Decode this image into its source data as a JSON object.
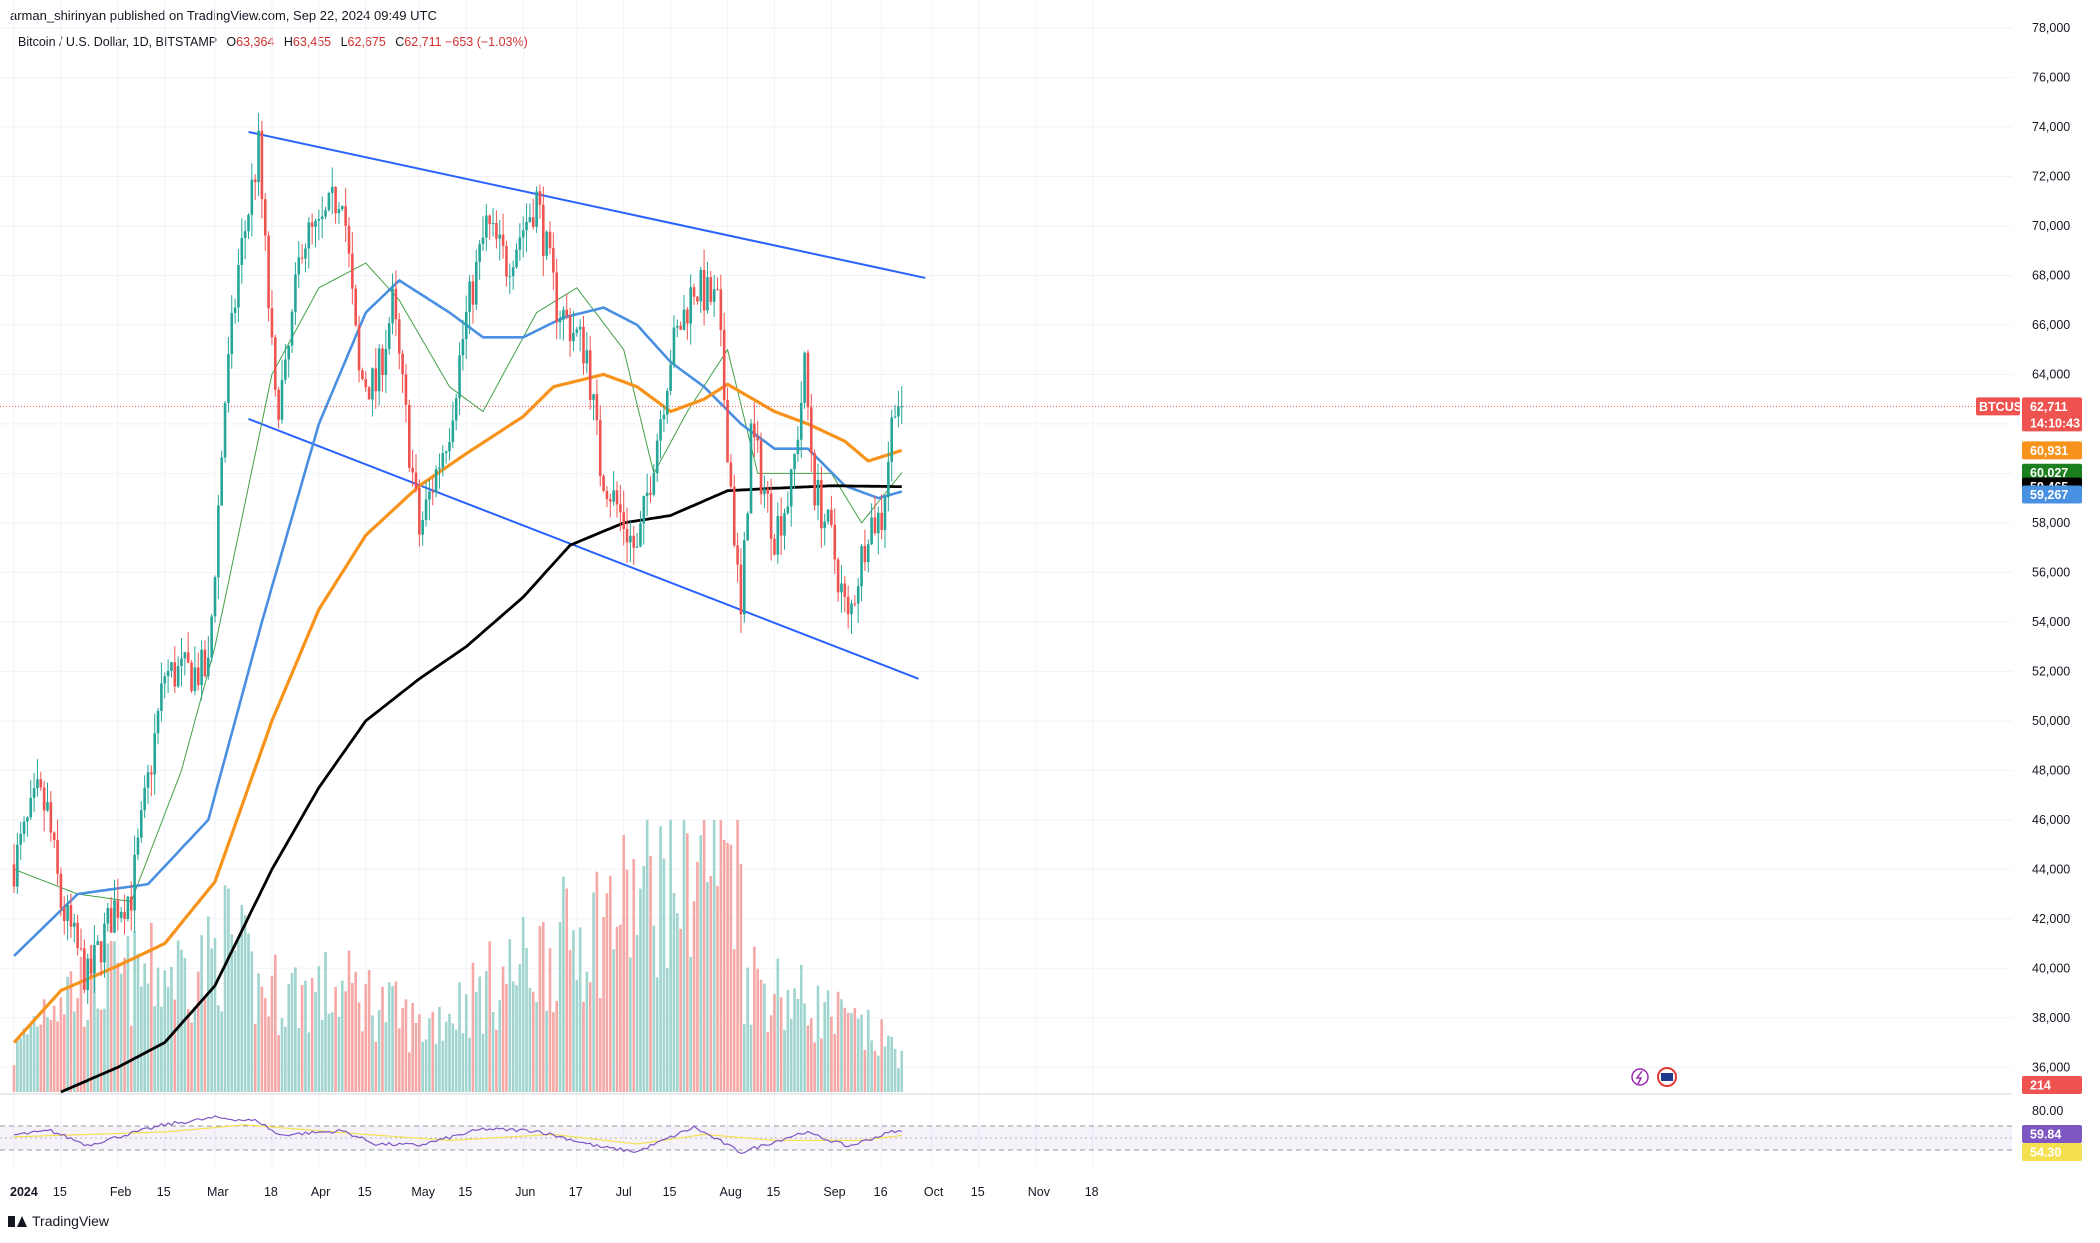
{
  "header": {
    "publisher": "arman_shirinyan published on TradingView.com, Sep 22, 2024 09:49 UTC",
    "symbol_name": "Bitcoin / U.S. Dollar, 1D, BITSTAMP",
    "open_label": "O",
    "open": "63,364",
    "high_label": "H",
    "high": "63,455",
    "low_label": "L",
    "low": "62,675",
    "close_label": "C",
    "close": "62,711",
    "change": "−653 (−1.03%)"
  },
  "footer": {
    "brand": "TradingView"
  },
  "colors": {
    "up": "#26a69a",
    "down": "#ef5350",
    "up_volume": "#9fd4cf",
    "down_volume": "#f5a8a6",
    "ma_short": "#43a047",
    "ma_50": "#4a90e2",
    "ma_100": "#f7931a",
    "ma_200": "#000000",
    "channel": "#2962ff",
    "rsi": "#7e57c2",
    "rsi_ma": "#f5e050"
  },
  "badges": {
    "symbol": "BTCUSD",
    "price": "62,711",
    "countdown": "14:10:43",
    "ma_100": "60,931",
    "ma_short": "60,027",
    "ma_200": "59,465",
    "ma_50": "59,267",
    "volume": "214",
    "rsi": "59.84",
    "rsi_ma": "54.30"
  },
  "chart_data": {
    "type": "candlestick",
    "y_axis": {
      "min": 35000,
      "max": 78000,
      "ticks": [
        "36,000",
        "38,000",
        "40,000",
        "42,000",
        "44,000",
        "46,000",
        "48,000",
        "50,000",
        "52,000",
        "54,000",
        "56,000",
        "58,000",
        "60,000",
        "62,000",
        "64,000",
        "66,000",
        "68,000",
        "70,000",
        "72,000",
        "74,000",
        "76,000",
        "78,000"
      ]
    },
    "rsi_axis": {
      "min": 0,
      "max": 100,
      "bands": [
        70,
        30
      ],
      "ticks": [
        "80.00"
      ]
    },
    "x_axis": {
      "start": "2024-01-01",
      "ticks": [
        {
          "date": "2024-01-01",
          "label": "2024"
        },
        {
          "date": "2024-01-15",
          "label": "15"
        },
        {
          "date": "2024-02-01",
          "label": "Feb"
        },
        {
          "date": "2024-02-15",
          "label": "15"
        },
        {
          "date": "2024-03-01",
          "label": "Mar"
        },
        {
          "date": "2024-03-18",
          "label": "18"
        },
        {
          "date": "2024-04-01",
          "label": "Apr"
        },
        {
          "date": "2024-04-15",
          "label": "15"
        },
        {
          "date": "2024-05-01",
          "label": "May"
        },
        {
          "date": "2024-05-15",
          "label": "15"
        },
        {
          "date": "2024-06-01",
          "label": "Jun"
        },
        {
          "date": "2024-06-17",
          "label": "17"
        },
        {
          "date": "2024-07-01",
          "label": "Jul"
        },
        {
          "date": "2024-07-15",
          "label": "15"
        },
        {
          "date": "2024-08-01",
          "label": "Aug"
        },
        {
          "date": "2024-08-15",
          "label": "15"
        },
        {
          "date": "2024-09-01",
          "label": "Sep"
        },
        {
          "date": "2024-09-16",
          "label": "16"
        },
        {
          "date": "2024-10-01",
          "label": "Oct"
        },
        {
          "date": "2024-10-15",
          "label": "15"
        },
        {
          "date": "2024-11-01",
          "label": "Nov"
        },
        {
          "date": "2024-11-18",
          "label": "18"
        }
      ]
    },
    "close_path": [
      [
        "2024-01-01",
        44200
      ],
      [
        "2024-01-08",
        46900
      ],
      [
        "2024-01-11",
        46300
      ],
      [
        "2024-01-15",
        42600
      ],
      [
        "2024-01-23",
        39500
      ],
      [
        "2024-01-31",
        42500
      ],
      [
        "2024-02-05",
        43000
      ],
      [
        "2024-02-10",
        47500
      ],
      [
        "2024-02-15",
        51900
      ],
      [
        "2024-02-28",
        52000
      ],
      [
        "2024-03-04",
        63000
      ],
      [
        "2024-03-08",
        68300
      ],
      [
        "2024-03-14",
        73100
      ],
      [
        "2024-03-19",
        62700
      ],
      [
        "2024-03-22",
        63800
      ],
      [
        "2024-03-27",
        69500
      ],
      [
        "2024-04-01",
        69700
      ],
      [
        "2024-04-08",
        71600
      ],
      [
        "2024-04-13",
        63900
      ],
      [
        "2024-04-18",
        63500
      ],
      [
        "2024-04-23",
        66800
      ],
      [
        "2024-05-01",
        57600
      ],
      [
        "2024-05-10",
        62000
      ],
      [
        "2024-05-15",
        66300
      ],
      [
        "2024-05-21",
        70000
      ],
      [
        "2024-05-27",
        68500
      ],
      [
        "2024-06-05",
        71100
      ],
      [
        "2024-06-11",
        66800
      ],
      [
        "2024-06-20",
        64900
      ],
      [
        "2024-06-24",
        60300
      ],
      [
        "2024-07-05",
        56700
      ],
      [
        "2024-07-15",
        64800
      ],
      [
        "2024-07-22",
        67600
      ],
      [
        "2024-07-29",
        66800
      ],
      [
        "2024-08-05",
        54000
      ],
      [
        "2024-08-08",
        61700
      ],
      [
        "2024-08-15",
        57600
      ],
      [
        "2024-08-20",
        59400
      ],
      [
        "2024-08-24",
        64200
      ],
      [
        "2024-08-27",
        59400
      ],
      [
        "2024-09-01",
        57300
      ],
      [
        "2024-09-06",
        53900
      ],
      [
        "2024-09-12",
        58000
      ],
      [
        "2024-09-16",
        58200
      ],
      [
        "2024-09-20",
        63200
      ],
      [
        "2024-09-22",
        62711
      ]
    ],
    "volume_scale_max": 30000,
    "volume_path": [
      [
        "2024-01-01",
        4000
      ],
      [
        "2024-01-12",
        11000
      ],
      [
        "2024-02-28",
        14000
      ],
      [
        "2024-03-05",
        17000
      ],
      [
        "2024-03-14",
        11000
      ],
      [
        "2024-04-13",
        11000
      ],
      [
        "2024-05-01",
        7000
      ],
      [
        "2024-08-05",
        28000
      ],
      [
        "2024-08-06",
        13000
      ],
      [
        "2024-09-22",
        4500
      ]
    ],
    "volume_base": 4500,
    "ma_50": [
      [
        "2024-01-01",
        40500
      ],
      [
        "2024-01-20",
        43000
      ],
      [
        "2024-02-10",
        43400
      ],
      [
        "2024-02-28",
        46000
      ],
      [
        "2024-03-15",
        54000
      ],
      [
        "2024-04-01",
        62000
      ],
      [
        "2024-04-15",
        66500
      ],
      [
        "2024-04-25",
        67800
      ],
      [
        "2024-05-10",
        66500
      ],
      [
        "2024-05-20",
        65500
      ],
      [
        "2024-06-01",
        65500
      ],
      [
        "2024-06-13",
        66300
      ],
      [
        "2024-06-25",
        66700
      ],
      [
        "2024-07-05",
        66000
      ],
      [
        "2024-07-15",
        64500
      ],
      [
        "2024-07-25",
        63500
      ],
      [
        "2024-08-05",
        62000
      ],
      [
        "2024-08-15",
        61000
      ],
      [
        "2024-08-25",
        61000
      ],
      [
        "2024-09-05",
        59500
      ],
      [
        "2024-09-15",
        59000
      ],
      [
        "2024-09-22",
        59267
      ]
    ],
    "ma_100": [
      [
        "2024-01-01",
        37000
      ],
      [
        "2024-01-15",
        39100
      ],
      [
        "2024-02-01",
        40100
      ],
      [
        "2024-02-15",
        41000
      ],
      [
        "2024-03-01",
        43500
      ],
      [
        "2024-03-18",
        50000
      ],
      [
        "2024-04-01",
        54500
      ],
      [
        "2024-04-15",
        57500
      ],
      [
        "2024-05-01",
        59500
      ],
      [
        "2024-05-15",
        60800
      ],
      [
        "2024-06-01",
        62300
      ],
      [
        "2024-06-10",
        63500
      ],
      [
        "2024-06-25",
        64000
      ],
      [
        "2024-07-05",
        63500
      ],
      [
        "2024-07-15",
        62500
      ],
      [
        "2024-07-25",
        63000
      ],
      [
        "2024-08-01",
        63600
      ],
      [
        "2024-08-15",
        62500
      ],
      [
        "2024-08-25",
        62000
      ],
      [
        "2024-09-05",
        61300
      ],
      [
        "2024-09-12",
        60500
      ],
      [
        "2024-09-22",
        60931
      ]
    ],
    "ma_200": [
      [
        "2024-01-15",
        35000
      ],
      [
        "2024-02-01",
        36000
      ],
      [
        "2024-02-15",
        37000
      ],
      [
        "2024-03-01",
        39300
      ],
      [
        "2024-03-18",
        44000
      ],
      [
        "2024-04-01",
        47300
      ],
      [
        "2024-04-15",
        50000
      ],
      [
        "2024-05-01",
        51700
      ],
      [
        "2024-05-15",
        53000
      ],
      [
        "2024-06-01",
        55000
      ],
      [
        "2024-06-15",
        57100
      ],
      [
        "2024-07-01",
        58000
      ],
      [
        "2024-07-15",
        58300
      ],
      [
        "2024-08-01",
        59300
      ],
      [
        "2024-08-15",
        59400
      ],
      [
        "2024-09-01",
        59500
      ],
      [
        "2024-09-22",
        59465
      ]
    ],
    "ma_short": [
      [
        "2024-01-01",
        44000
      ],
      [
        "2024-01-20",
        43000
      ],
      [
        "2024-02-05",
        42700
      ],
      [
        "2024-02-20",
        48000
      ],
      [
        "2024-03-01",
        53000
      ],
      [
        "2024-03-18",
        64000
      ],
      [
        "2024-04-01",
        67500
      ],
      [
        "2024-04-15",
        68500
      ],
      [
        "2024-04-25",
        67000
      ],
      [
        "2024-05-10",
        63500
      ],
      [
        "2024-05-20",
        62500
      ],
      [
        "2024-06-05",
        66500
      ],
      [
        "2024-06-17",
        67500
      ],
      [
        "2024-07-01",
        65000
      ],
      [
        "2024-07-10",
        60000
      ],
      [
        "2024-07-20",
        62500
      ],
      [
        "2024-08-01",
        65000
      ],
      [
        "2024-08-10",
        60000
      ],
      [
        "2024-08-20",
        60000
      ],
      [
        "2024-09-01",
        60000
      ],
      [
        "2024-09-10",
        58000
      ],
      [
        "2024-09-22",
        60027
      ]
    ],
    "channel_upper": [
      [
        "2024-03-11",
        73800
      ],
      [
        "2024-09-29",
        67900
      ]
    ],
    "channel_lower": [
      [
        "2024-03-11",
        62200
      ],
      [
        "2024-09-27",
        51700
      ]
    ],
    "rsi_path": [
      [
        "2024-01-01",
        55
      ],
      [
        "2024-01-12",
        62
      ],
      [
        "2024-01-23",
        38
      ],
      [
        "2024-02-01",
        52
      ],
      [
        "2024-02-15",
        72
      ],
      [
        "2024-03-01",
        84
      ],
      [
        "2024-03-14",
        78
      ],
      [
        "2024-03-20",
        55
      ],
      [
        "2024-04-08",
        62
      ],
      [
        "2024-04-18",
        40
      ],
      [
        "2024-05-01",
        38
      ],
      [
        "2024-05-20",
        65
      ],
      [
        "2024-06-05",
        62
      ],
      [
        "2024-06-24",
        35
      ],
      [
        "2024-07-05",
        27
      ],
      [
        "2024-07-22",
        68
      ],
      [
        "2024-08-05",
        26
      ],
      [
        "2024-08-24",
        60
      ],
      [
        "2024-09-06",
        36
      ],
      [
        "2024-09-20",
        62
      ],
      [
        "2024-09-22",
        59.84
      ]
    ],
    "rsi_ma_path": [
      [
        "2024-01-01",
        52
      ],
      [
        "2024-02-15",
        60
      ],
      [
        "2024-03-10",
        72
      ],
      [
        "2024-04-10",
        58
      ],
      [
        "2024-05-10",
        46
      ],
      [
        "2024-06-10",
        56
      ],
      [
        "2024-07-05",
        40
      ],
      [
        "2024-07-25",
        56
      ],
      [
        "2024-08-15",
        46
      ],
      [
        "2024-09-10",
        46
      ],
      [
        "2024-09-22",
        54.3
      ]
    ]
  }
}
